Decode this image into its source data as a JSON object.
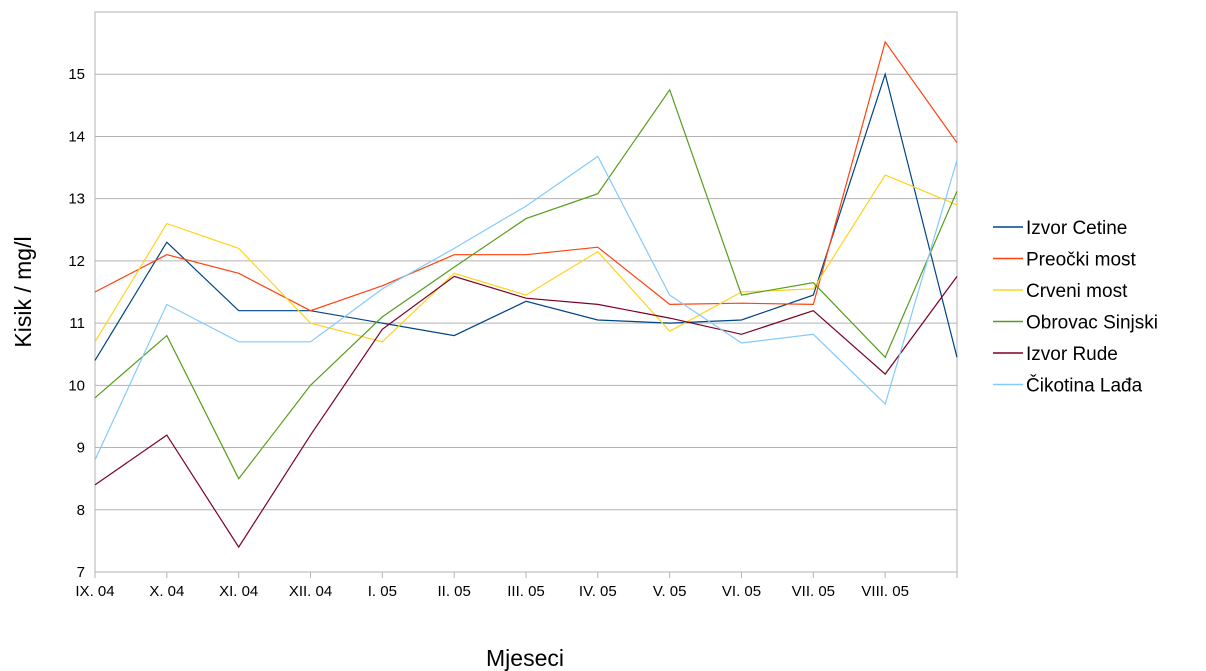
{
  "chart_data": {
    "type": "line",
    "title": "",
    "xlabel": "Mjeseci",
    "ylabel": "Kisik / mg/l",
    "ylim": [
      7,
      16
    ],
    "yticks": [
      7,
      8,
      9,
      10,
      11,
      12,
      13,
      14,
      15
    ],
    "grid": true,
    "legend_position": "right",
    "categories": [
      "IX. 04",
      "X. 04",
      "XI. 04",
      "XII. 04",
      "I. 05",
      "II. 05",
      "III. 05",
      "IV. 05",
      "V. 05",
      "VI. 05",
      "VII. 05",
      "VIII. 05",
      ""
    ],
    "series": [
      {
        "name": "Izvor Cetine",
        "color": "#004586",
        "values": [
          10.4,
          12.3,
          11.2,
          11.2,
          11.0,
          10.8,
          11.35,
          11.05,
          11.0,
          11.05,
          11.45,
          15.0,
          10.45
        ]
      },
      {
        "name": "Preočki most",
        "color": "#ff420e",
        "values": [
          11.5,
          12.1,
          11.8,
          11.2,
          11.6,
          12.1,
          12.1,
          12.22,
          11.3,
          11.32,
          11.3,
          15.52,
          13.9
        ]
      },
      {
        "name": "Crveni most",
        "color": "#ffd320",
        "values": [
          10.7,
          12.6,
          12.2,
          11.0,
          10.7,
          11.8,
          11.45,
          12.15,
          10.87,
          11.5,
          11.55,
          13.38,
          12.9
        ]
      },
      {
        "name": "Obrovac Sinjski",
        "color": "#579d1c",
        "values": [
          9.8,
          10.8,
          8.5,
          10.0,
          11.1,
          11.9,
          12.68,
          13.08,
          14.75,
          11.45,
          11.65,
          10.45,
          13.12
        ]
      },
      {
        "name": "Izvor Rude",
        "color": "#7e0021",
        "values": [
          8.4,
          9.2,
          7.4,
          9.2,
          10.9,
          11.75,
          11.4,
          11.3,
          11.08,
          10.82,
          11.2,
          10.18,
          11.75
        ]
      },
      {
        "name": "Čikotina Lađa",
        "color": "#83caff",
        "values": [
          8.8,
          11.3,
          10.7,
          10.7,
          11.55,
          12.2,
          12.88,
          13.68,
          11.45,
          10.68,
          10.82,
          9.7,
          13.62
        ]
      }
    ]
  }
}
